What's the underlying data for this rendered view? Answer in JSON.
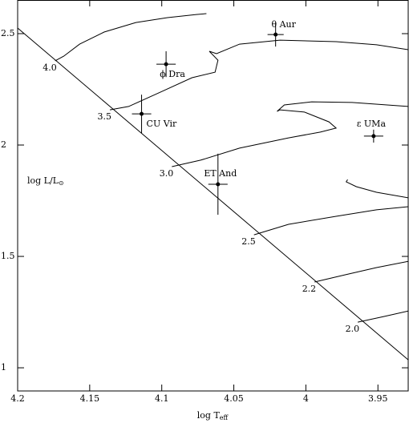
{
  "chart_data": {
    "type": "line",
    "x_label": "log T",
    "x_label_sub": "eff",
    "y_label": "log L/L",
    "y_label_sub": "⊙",
    "xlim": [
      4.2,
      3.929
    ],
    "ylim": [
      0.896,
      2.651
    ],
    "xticks": [
      4.2,
      4.15,
      4.1,
      4.05,
      4,
      3.95
    ],
    "yticks": [
      1,
      1.5,
      2,
      2.5
    ],
    "color": "#000000",
    "zams": {
      "x": [
        4.2,
        3.929
      ],
      "values": [
        2.525,
        1.036
      ]
    },
    "series": [
      {
        "name": "4.0",
        "x": [
          4.174,
          4.168,
          4.157,
          4.14,
          4.118,
          4.096,
          4.076,
          4.069
        ],
        "values": [
          2.378,
          2.399,
          2.453,
          2.507,
          2.55,
          2.572,
          2.586,
          2.59
        ]
      },
      {
        "name": "3.5",
        "x": [
          4.136,
          4.123,
          4.101,
          4.079,
          4.063,
          4.061,
          4.067,
          4.062,
          4.046,
          4.018,
          3.979,
          3.951,
          3.929
        ],
        "values": [
          2.158,
          2.173,
          2.237,
          2.302,
          2.327,
          2.381,
          2.421,
          2.41,
          2.453,
          2.471,
          2.464,
          2.45,
          2.428
        ]
      },
      {
        "name": "3.0",
        "x": [
          4.093,
          4.073,
          4.046,
          4.012,
          3.99,
          3.979,
          3.984,
          4.001,
          4.018,
          4.02,
          4.015,
          3.996,
          3.968,
          3.929
        ],
        "values": [
          1.903,
          1.932,
          1.986,
          2.032,
          2.058,
          2.076,
          2.104,
          2.148,
          2.158,
          2.151,
          2.18,
          2.194,
          2.191,
          2.173
        ]
      },
      {
        "name": "2.5",
        "x": [
          4.036,
          4.012,
          3.979,
          3.951,
          3.929,
          null,
          3.971,
          3.972,
          3.965,
          3.951,
          3.929
        ],
        "values": [
          1.597,
          1.644,
          1.68,
          1.709,
          1.723,
          null,
          1.845,
          1.835,
          1.813,
          1.788,
          1.763
        ]
      },
      {
        "name": "2.2",
        "x": [
          3.994,
          3.973,
          3.951,
          3.929
        ],
        "values": [
          1.385,
          1.417,
          1.45,
          1.478
        ]
      },
      {
        "name": "2.0",
        "x": [
          3.964,
          3.946,
          3.929
        ],
        "values": [
          1.205,
          1.23,
          1.255
        ]
      }
    ],
    "stars": [
      {
        "name": "θ Aur",
        "x": 4.021,
        "y": 2.496,
        "xerr": 0.0056,
        "yerr": 0.054
      },
      {
        "name": "ϕ Dra",
        "x": 4.097,
        "y": 2.363,
        "xerr": 0.0067,
        "yerr": 0.058
      },
      {
        "name": "CU Vir",
        "x": 4.114,
        "y": 2.14,
        "xerr": 0.0067,
        "yerr": 0.086
      },
      {
        "name": "ε UMa",
        "x": 3.953,
        "y": 2.04,
        "xerr": 0.0067,
        "yerr": 0.029
      },
      {
        "name": "ET And",
        "x": 4.061,
        "y": 1.824,
        "xerr": 0.0067,
        "yerr": 0.137
      }
    ]
  }
}
